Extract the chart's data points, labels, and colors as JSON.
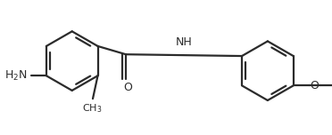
{
  "bg": "#ffffff",
  "bc": "#2b2b2b",
  "tc": "#2b2b2b",
  "lw": 1.6,
  "dbo": 0.042,
  "r": 0.36,
  "figsize": [
    3.72,
    1.52
  ],
  "dpi": 100,
  "lcx": -0.95,
  "lcy": 0.08,
  "rcx": 1.42,
  "rcy": -0.04,
  "fs": 9.0,
  "fsm": 8.0,
  "xlim": [
    -1.75,
    2.2
  ],
  "ylim": [
    -0.76,
    0.76
  ]
}
